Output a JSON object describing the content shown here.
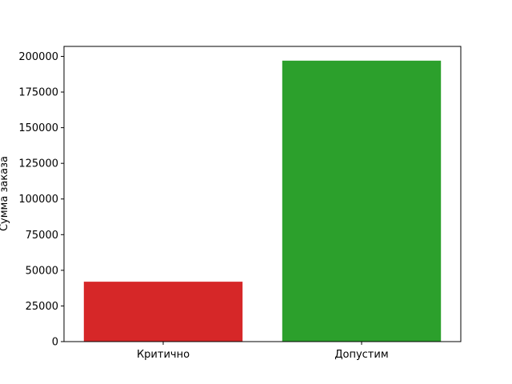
{
  "chart_data": {
    "type": "bar",
    "title": "",
    "xlabel": "",
    "ylabel": "Сумма заказа",
    "categories": [
      "Критично",
      "Допустим"
    ],
    "values": [
      42000,
      197000
    ],
    "colors": [
      "#d62728",
      "#2ca02c"
    ],
    "ylim": [
      0,
      207000
    ],
    "yticks": [
      0,
      25000,
      50000,
      75000,
      100000,
      125000,
      150000,
      175000,
      200000
    ],
    "grid": false,
    "legend": "none"
  }
}
